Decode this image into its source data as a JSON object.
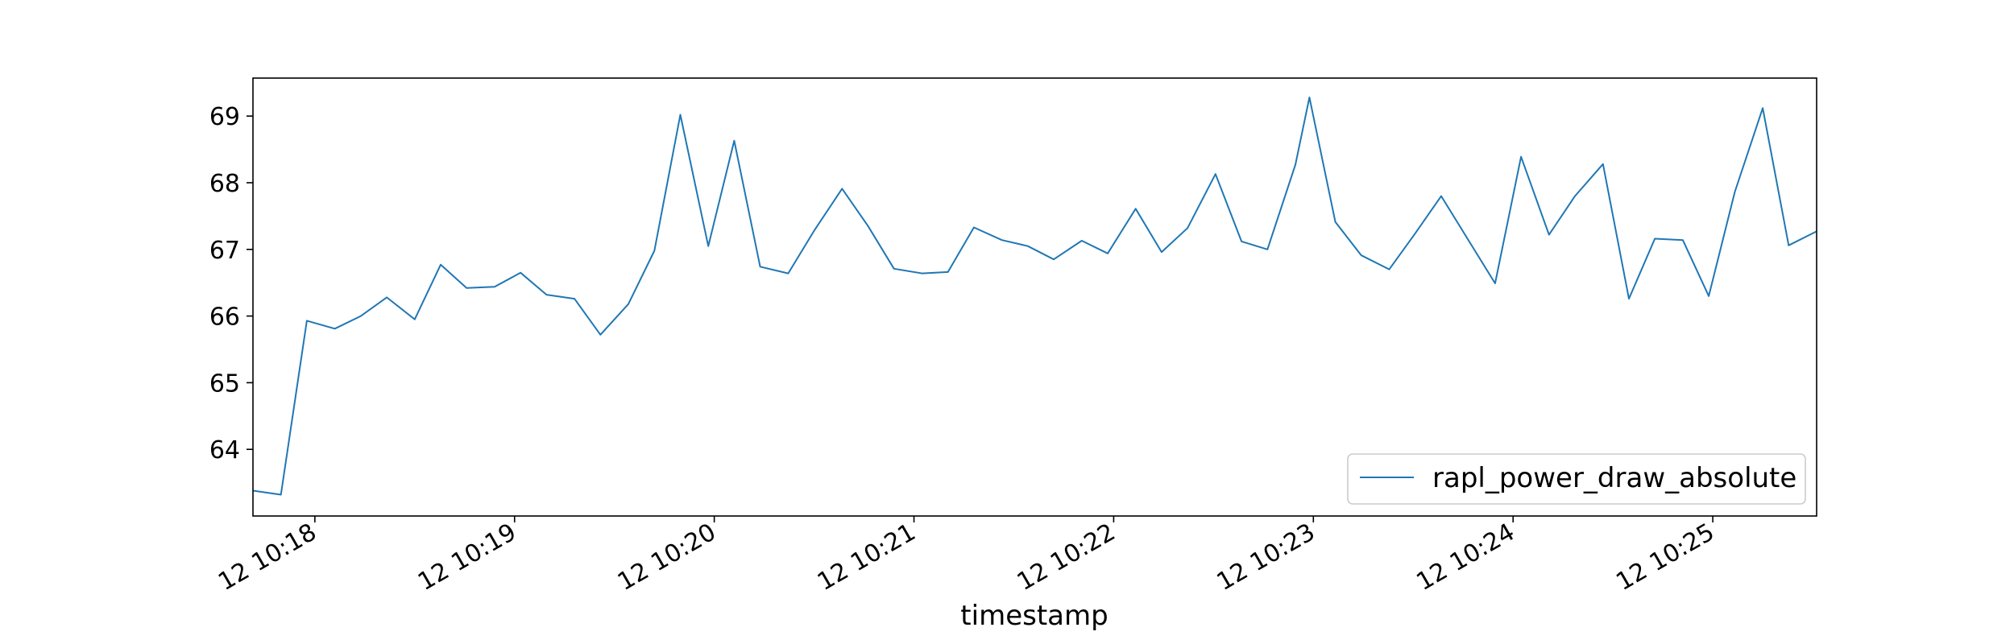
{
  "chart_data": {
    "type": "line",
    "title": "",
    "xlabel": "timestamp",
    "ylabel": "",
    "x_ticks": [
      {
        "minute": 18,
        "label": "12 10:18"
      },
      {
        "minute": 19,
        "label": "12 10:19"
      },
      {
        "minute": 20,
        "label": "12 10:20"
      },
      {
        "minute": 21,
        "label": "12 10:21"
      },
      {
        "minute": 22,
        "label": "12 10:22"
      },
      {
        "minute": 23,
        "label": "12 10:23"
      },
      {
        "minute": 24,
        "label": "12 10:24"
      },
      {
        "minute": 25,
        "label": "12 10:25"
      }
    ],
    "y_ticks": [
      64,
      65,
      66,
      67,
      68,
      69
    ],
    "xlim": [
      17.69,
      25.52
    ],
    "ylim": [
      63.0,
      69.57
    ],
    "grid": false,
    "legend_position": "lower-right",
    "colors": {
      "series": "#1f77b4",
      "axes": "#000000"
    },
    "series": [
      {
        "name": "rapl_power_draw_absolute",
        "points": [
          [
            17.69,
            63.38
          ],
          [
            17.83,
            63.32
          ],
          [
            17.96,
            65.93
          ],
          [
            18.1,
            65.81
          ],
          [
            18.23,
            66.0
          ],
          [
            18.36,
            66.28
          ],
          [
            18.5,
            65.95
          ],
          [
            18.63,
            66.77
          ],
          [
            18.76,
            66.42
          ],
          [
            18.9,
            66.44
          ],
          [
            19.03,
            66.65
          ],
          [
            19.16,
            66.32
          ],
          [
            19.3,
            66.26
          ],
          [
            19.43,
            65.72
          ],
          [
            19.57,
            66.18
          ],
          [
            19.7,
            66.98
          ],
          [
            19.83,
            69.02
          ],
          [
            19.97,
            67.05
          ],
          [
            20.1,
            68.63
          ],
          [
            20.23,
            66.74
          ],
          [
            20.37,
            66.64
          ],
          [
            20.5,
            67.28
          ],
          [
            20.64,
            67.91
          ],
          [
            20.77,
            67.35
          ],
          [
            20.9,
            66.71
          ],
          [
            21.04,
            66.64
          ],
          [
            21.17,
            66.66
          ],
          [
            21.3,
            67.33
          ],
          [
            21.44,
            67.14
          ],
          [
            21.57,
            67.05
          ],
          [
            21.7,
            66.85
          ],
          [
            21.84,
            67.13
          ],
          [
            21.97,
            66.94
          ],
          [
            22.11,
            67.61
          ],
          [
            22.24,
            66.96
          ],
          [
            22.37,
            67.32
          ],
          [
            22.51,
            68.13
          ],
          [
            22.64,
            67.12
          ],
          [
            22.77,
            67.0
          ],
          [
            22.91,
            68.27
          ],
          [
            22.98,
            69.28
          ],
          [
            23.11,
            67.41
          ],
          [
            23.24,
            66.91
          ],
          [
            23.38,
            66.7
          ],
          [
            23.51,
            67.24
          ],
          [
            23.64,
            67.8
          ],
          [
            23.78,
            67.12
          ],
          [
            23.91,
            66.49
          ],
          [
            24.04,
            68.39
          ],
          [
            24.18,
            67.22
          ],
          [
            24.31,
            67.8
          ],
          [
            24.45,
            68.28
          ],
          [
            24.58,
            66.26
          ],
          [
            24.71,
            67.16
          ],
          [
            24.85,
            67.14
          ],
          [
            24.98,
            66.3
          ],
          [
            25.11,
            67.86
          ],
          [
            25.25,
            69.12
          ],
          [
            25.38,
            67.06
          ],
          [
            25.52,
            67.27
          ]
        ]
      }
    ]
  }
}
